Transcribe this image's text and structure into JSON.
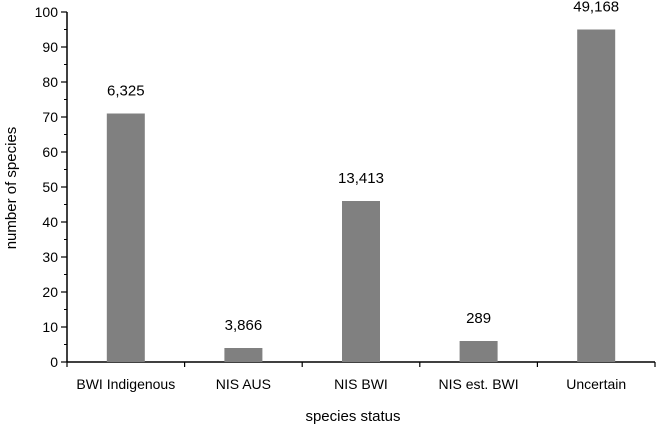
{
  "chart_data": {
    "type": "bar",
    "title": "",
    "xlabel": "species status",
    "ylabel": "number of species",
    "ylim": [
      0,
      100
    ],
    "yticks": [
      0,
      10,
      20,
      30,
      40,
      50,
      60,
      70,
      80,
      90,
      100
    ],
    "categories": [
      "BWI Indigenous",
      "NIS AUS",
      "NIS BWI",
      "NIS est. BWI",
      "Uncertain"
    ],
    "values": [
      71,
      4,
      46,
      6,
      95
    ],
    "data_labels": [
      "6,325",
      "3,866",
      "13,413",
      "289",
      "49,168"
    ],
    "grid": false,
    "legend": "none",
    "colors": {
      "bar": "#808080",
      "axis": "#000000"
    }
  }
}
